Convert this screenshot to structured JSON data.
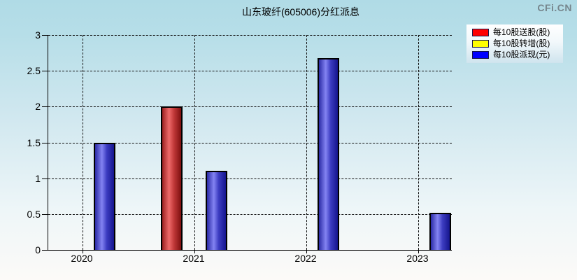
{
  "branding": {
    "logo_text": "CFi.CN"
  },
  "chart_data": {
    "type": "bar",
    "title": "山东玻纤(605006)分红派息",
    "categories": [
      "2020",
      "2021",
      "2022",
      "2023"
    ],
    "series": [
      {
        "name": "每10股送股(股)",
        "color": "#ff0000",
        "bar_gradient": [
          "#9c2121",
          "#ee6a6a",
          "#c03838",
          "#7d0f0f"
        ],
        "values": [
          0,
          2.0,
          0,
          0
        ]
      },
      {
        "name": "每10股转增(股)",
        "color": "#ffff00",
        "bar_gradient": [
          "#a8a823",
          "#f7f765",
          "#c9c93a",
          "#8f8f10"
        ],
        "values": [
          0,
          0,
          0,
          0
        ]
      },
      {
        "name": "每10股派现(元)",
        "color": "#0000ff",
        "bar_gradient": [
          "#2b2ba6",
          "#8383f2",
          "#3c3cc0",
          "#15158e"
        ],
        "values": [
          1.5,
          1.1,
          2.68,
          0.52
        ]
      }
    ],
    "ylim": [
      0,
      3
    ],
    "ytick_step": 0.5,
    "grid": true,
    "legend_position": "top-right"
  }
}
